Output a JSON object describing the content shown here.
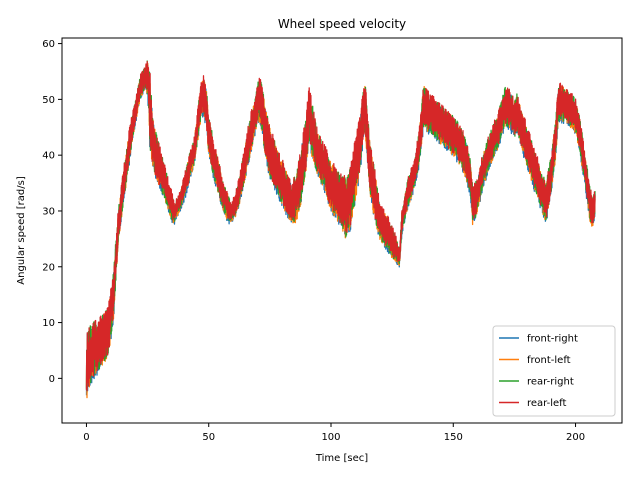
{
  "chart_data": {
    "type": "line",
    "title": "Wheel speed velocity",
    "xlabel": "Time [sec]",
    "ylabel": "Angular speed [rad/s]",
    "xlim": [
      -10,
      219
    ],
    "ylim": [
      -8,
      61
    ],
    "xticks": [
      0,
      50,
      100,
      150,
      200
    ],
    "yticks": [
      0,
      10,
      20,
      30,
      40,
      50,
      60
    ],
    "grid": false,
    "legend_position": "lower-right",
    "series": [
      {
        "name": "front-right",
        "color": "#1f77b4"
      },
      {
        "name": "front-left",
        "color": "#ff7f0e"
      },
      {
        "name": "rear-right",
        "color": "#2ca02c"
      },
      {
        "name": "rear-left",
        "color": "#d62728"
      }
    ],
    "envelope": {
      "x": [
        0,
        1,
        3,
        6,
        9,
        11,
        13,
        15,
        17,
        19,
        21,
        22,
        23,
        24,
        25,
        26,
        27,
        29,
        32,
        35,
        36,
        38,
        40,
        42,
        44,
        45,
        46,
        47,
        48,
        49,
        50,
        51,
        52,
        54,
        56,
        58,
        59,
        61,
        63,
        65,
        67,
        69,
        70,
        71,
        72,
        73,
        75,
        78,
        81,
        84,
        86,
        88,
        90,
        91,
        92,
        94,
        96,
        98,
        100,
        103,
        106,
        108,
        110,
        112,
        113,
        114,
        115,
        116,
        118,
        120,
        123,
        126,
        128,
        129,
        131,
        134,
        136,
        137,
        138,
        140,
        145,
        150,
        153,
        155,
        157,
        158,
        160,
        162,
        165,
        168,
        171,
        173,
        175,
        176,
        178,
        181,
        183,
        184,
        186,
        188,
        190,
        192,
        193,
        196,
        198,
        200,
        202,
        204,
        206,
        207,
        208
      ],
      "upper": [
        8,
        9,
        10,
        11,
        13,
        19,
        30,
        37,
        43,
        48,
        52,
        54,
        55,
        56,
        57,
        55,
        47,
        43,
        38,
        33,
        31,
        33,
        36,
        40,
        43,
        46,
        50,
        53,
        54,
        52,
        47,
        45,
        42,
        39,
        35,
        33,
        31,
        33,
        37,
        42,
        47,
        50,
        53,
        54,
        52,
        49,
        45,
        41,
        38,
        35,
        37,
        42,
        48,
        52,
        50,
        45,
        43,
        41,
        39,
        37,
        36,
        38,
        43,
        47,
        51,
        53,
        47,
        42,
        37,
        31,
        29,
        26,
        23,
        30,
        35,
        39,
        44,
        49,
        53,
        51,
        49,
        47,
        45,
        43,
        39,
        34,
        36,
        40,
        44,
        47,
        52,
        52,
        50,
        51,
        48,
        44,
        41,
        40,
        37,
        35,
        40,
        47,
        53,
        52,
        51,
        50,
        46,
        40,
        34,
        32,
        34
      ],
      "lower": [
        -4,
        -2,
        0,
        2,
        4,
        10,
        24,
        31,
        37,
        43,
        48,
        50,
        51,
        52,
        51,
        41,
        38,
        35,
        32,
        28,
        28,
        30,
        32,
        35,
        38,
        41,
        44,
        47,
        47,
        45,
        40,
        38,
        36,
        33,
        30,
        28,
        28,
        29,
        32,
        36,
        40,
        44,
        46,
        46,
        44,
        40,
        36,
        33,
        30,
        28,
        28,
        32,
        38,
        43,
        40,
        37,
        35,
        33,
        30,
        28,
        25,
        27,
        32,
        37,
        42,
        44,
        38,
        33,
        28,
        25,
        23,
        21,
        20,
        26,
        30,
        34,
        38,
        42,
        45,
        44,
        42,
        40,
        38,
        36,
        33,
        27,
        30,
        34,
        38,
        41,
        45,
        45,
        43,
        44,
        41,
        37,
        34,
        33,
        30,
        28,
        33,
        40,
        46,
        46,
        45,
        44,
        40,
        34,
        28,
        27,
        29
      ]
    }
  }
}
